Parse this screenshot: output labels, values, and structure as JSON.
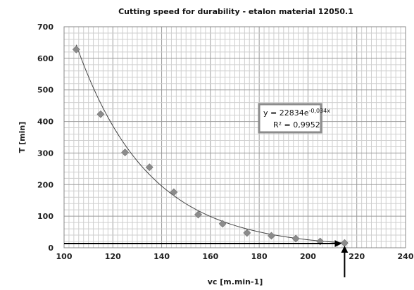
{
  "chart_data": {
    "type": "scatter",
    "title": "Cutting speed for durability - etalon material 12050.1",
    "xlabel": "vc [m.min-1]",
    "ylabel": "T [min]",
    "xlim": [
      100,
      240
    ],
    "ylim": [
      0,
      700
    ],
    "x_ticks": [
      "100",
      "120",
      "140",
      "160",
      "180",
      "200",
      "220",
      "240"
    ],
    "y_ticks": [
      "0",
      "100",
      "200",
      "300",
      "400",
      "500",
      "600",
      "700"
    ],
    "series": [
      {
        "x": [
          105,
          115,
          125,
          135,
          145,
          155,
          165,
          175,
          185,
          195,
          205,
          215
        ],
        "y": [
          628,
          423,
          302,
          255,
          176,
          105,
          76,
          47,
          38,
          29,
          20,
          15
        ],
        "marker": "diamond",
        "color": "#8c8c8c"
      }
    ],
    "trendline": {
      "type": "exponential",
      "a": 22834,
      "b": -0.034,
      "equation": "y = 22834e",
      "equation_exponent": "-0,034x",
      "r2": "R² = 0,9952",
      "color": "#444444"
    },
    "annotations": {
      "horizontal_arrow_y": 20,
      "vertical_arrow_x": 215,
      "arrow_color": "#000000"
    },
    "grid": true,
    "colors": {
      "major_grid": "#9a9a9a",
      "minor_grid": "#cfcfcf",
      "equation_box_border": "#8c8c8c"
    }
  }
}
